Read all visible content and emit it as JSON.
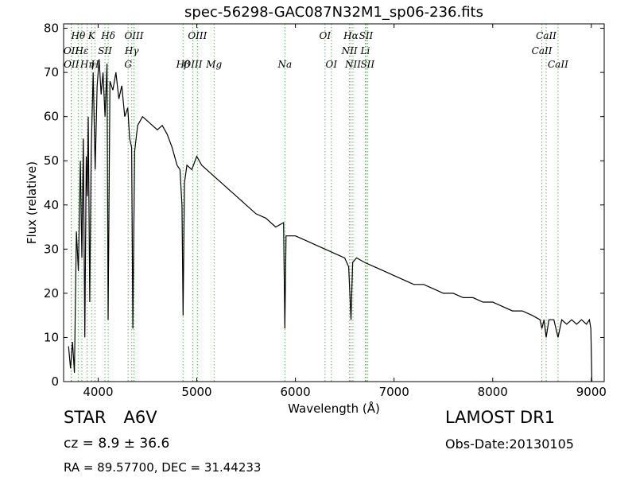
{
  "chart_data": {
    "type": "line",
    "title": "spec-56298-GAC087N32M1_sp06-236.fits",
    "xlabel": "Wavelength (Å)",
    "ylabel": "Flux (relative)",
    "xlim": [
      3650,
      9130
    ],
    "ylim": [
      0,
      81
    ],
    "xticks": [
      4000,
      5000,
      6000,
      7000,
      8000,
      9000
    ],
    "xtick_labels": [
      "4000",
      "5000",
      "6000",
      "7000",
      "8000",
      "9000"
    ],
    "yticks": [
      0,
      10,
      20,
      30,
      40,
      50,
      60,
      70,
      80
    ],
    "ytick_labels": [
      "0",
      "10",
      "20",
      "30",
      "40",
      "50",
      "60",
      "70",
      "80"
    ],
    "grid": false,
    "line_color": "#000000",
    "marker_color": "#5cb85c",
    "series": [
      {
        "x": [
          3700,
          3720,
          3740,
          3760,
          3780,
          3800,
          3820,
          3835,
          3850,
          3865,
          3880,
          3890,
          3900,
          3915,
          3930,
          3950,
          3970,
          3990,
          4010,
          4030,
          4050,
          4070,
          4090,
          4101,
          4120,
          4150,
          4180,
          4210,
          4240,
          4270,
          4300,
          4320,
          4340,
          4352,
          4370,
          4400,
          4450,
          4500,
          4550,
          4600,
          4650,
          4700,
          4750,
          4800,
          4830,
          4850,
          4861,
          4875,
          4900,
          4950,
          5000,
          5050,
          5100,
          5150,
          5200,
          5300,
          5400,
          5500,
          5600,
          5700,
          5800,
          5880,
          5893,
          5905,
          6000,
          6100,
          6200,
          6300,
          6400,
          6500,
          6540,
          6563,
          6580,
          6620,
          6700,
          6800,
          6900,
          7000,
          7100,
          7200,
          7300,
          7400,
          7500,
          7600,
          7700,
          7800,
          7900,
          8000,
          8100,
          8200,
          8300,
          8400,
          8480,
          8498,
          8520,
          8542,
          8570,
          8620,
          8662,
          8700,
          8750,
          8800,
          8850,
          8900,
          8950,
          8980,
          8995,
          9005
        ],
        "y": [
          8,
          3,
          9,
          2,
          34,
          25,
          50,
          28,
          55,
          10,
          51,
          42,
          60,
          18,
          52,
          70,
          48,
          67,
          73,
          65,
          70,
          60,
          72,
          14,
          68,
          66,
          70,
          64,
          67,
          60,
          62,
          55,
          53,
          12,
          52,
          58,
          60,
          59,
          58,
          57,
          58,
          56,
          53,
          49,
          48,
          40,
          15,
          45,
          49,
          48,
          51,
          49,
          48,
          47,
          46,
          44,
          42,
          40,
          38,
          37,
          35,
          36,
          12,
          33,
          33,
          32,
          31,
          30,
          29,
          28,
          26,
          14,
          27,
          28,
          27,
          26,
          25,
          24,
          23,
          22,
          22,
          21,
          20,
          20,
          19,
          19,
          18,
          18,
          17,
          16,
          16,
          15,
          14,
          12,
          14,
          10,
          14,
          14,
          10,
          14,
          13,
          14,
          13,
          14,
          13,
          14,
          12,
          0
        ]
      }
    ],
    "spectral_lines": [
      {
        "label": "Hθ",
        "x": 3798,
        "row": 0
      },
      {
        "label": "K",
        "x": 3934,
        "row": 0
      },
      {
        "label": "Hδ",
        "x": 4102,
        "row": 0
      },
      {
        "label": "OIII",
        "x": 4363,
        "row": 0
      },
      {
        "label": "OIII",
        "x": 5007,
        "row": 0
      },
      {
        "label": "OI",
        "x": 6300,
        "row": 0
      },
      {
        "label": "Hα",
        "x": 6563,
        "row": 0
      },
      {
        "label": "SII",
        "x": 6716,
        "row": 0
      },
      {
        "label": "CaII",
        "x": 8542,
        "row": 0
      },
      {
        "label": "OII",
        "x": 3727,
        "row": 1
      },
      {
        "label": "Hε",
        "x": 3835,
        "row": 1
      },
      {
        "label": "SII",
        "x": 4069,
        "row": 1
      },
      {
        "label": "Hγ",
        "x": 4341,
        "row": 1
      },
      {
        "label": "NII",
        "x": 6548,
        "row": 1
      },
      {
        "label": "Li",
        "x": 6708,
        "row": 1
      },
      {
        "label": "CaII",
        "x": 8498,
        "row": 1
      },
      {
        "label": "OII",
        "x": 3729,
        "row": 2
      },
      {
        "label": "Hη",
        "x": 3889,
        "row": 2
      },
      {
        "label": "H",
        "x": 3968,
        "row": 2
      },
      {
        "label": "G",
        "x": 4304,
        "row": 2
      },
      {
        "label": "Hβ",
        "x": 4861,
        "row": 2
      },
      {
        "label": "OIII",
        "x": 4959,
        "row": 2
      },
      {
        "label": "Mg",
        "x": 5175,
        "row": 2
      },
      {
        "label": "Na",
        "x": 5893,
        "row": 2
      },
      {
        "label": "OI",
        "x": 6364,
        "row": 2
      },
      {
        "label": "NII",
        "x": 6583,
        "row": 2
      },
      {
        "label": "SII",
        "x": 6731,
        "row": 2
      },
      {
        "label": "CaII",
        "x": 8662,
        "row": 2
      }
    ]
  },
  "info": {
    "object_class": "STAR",
    "subclass": "A6V",
    "survey": "LAMOST DR1",
    "cz": "cz = 8.9 ± 36.6",
    "obs_date": "Obs-Date:20130105",
    "radec": "RA = 89.57700, DEC = 31.44233"
  }
}
